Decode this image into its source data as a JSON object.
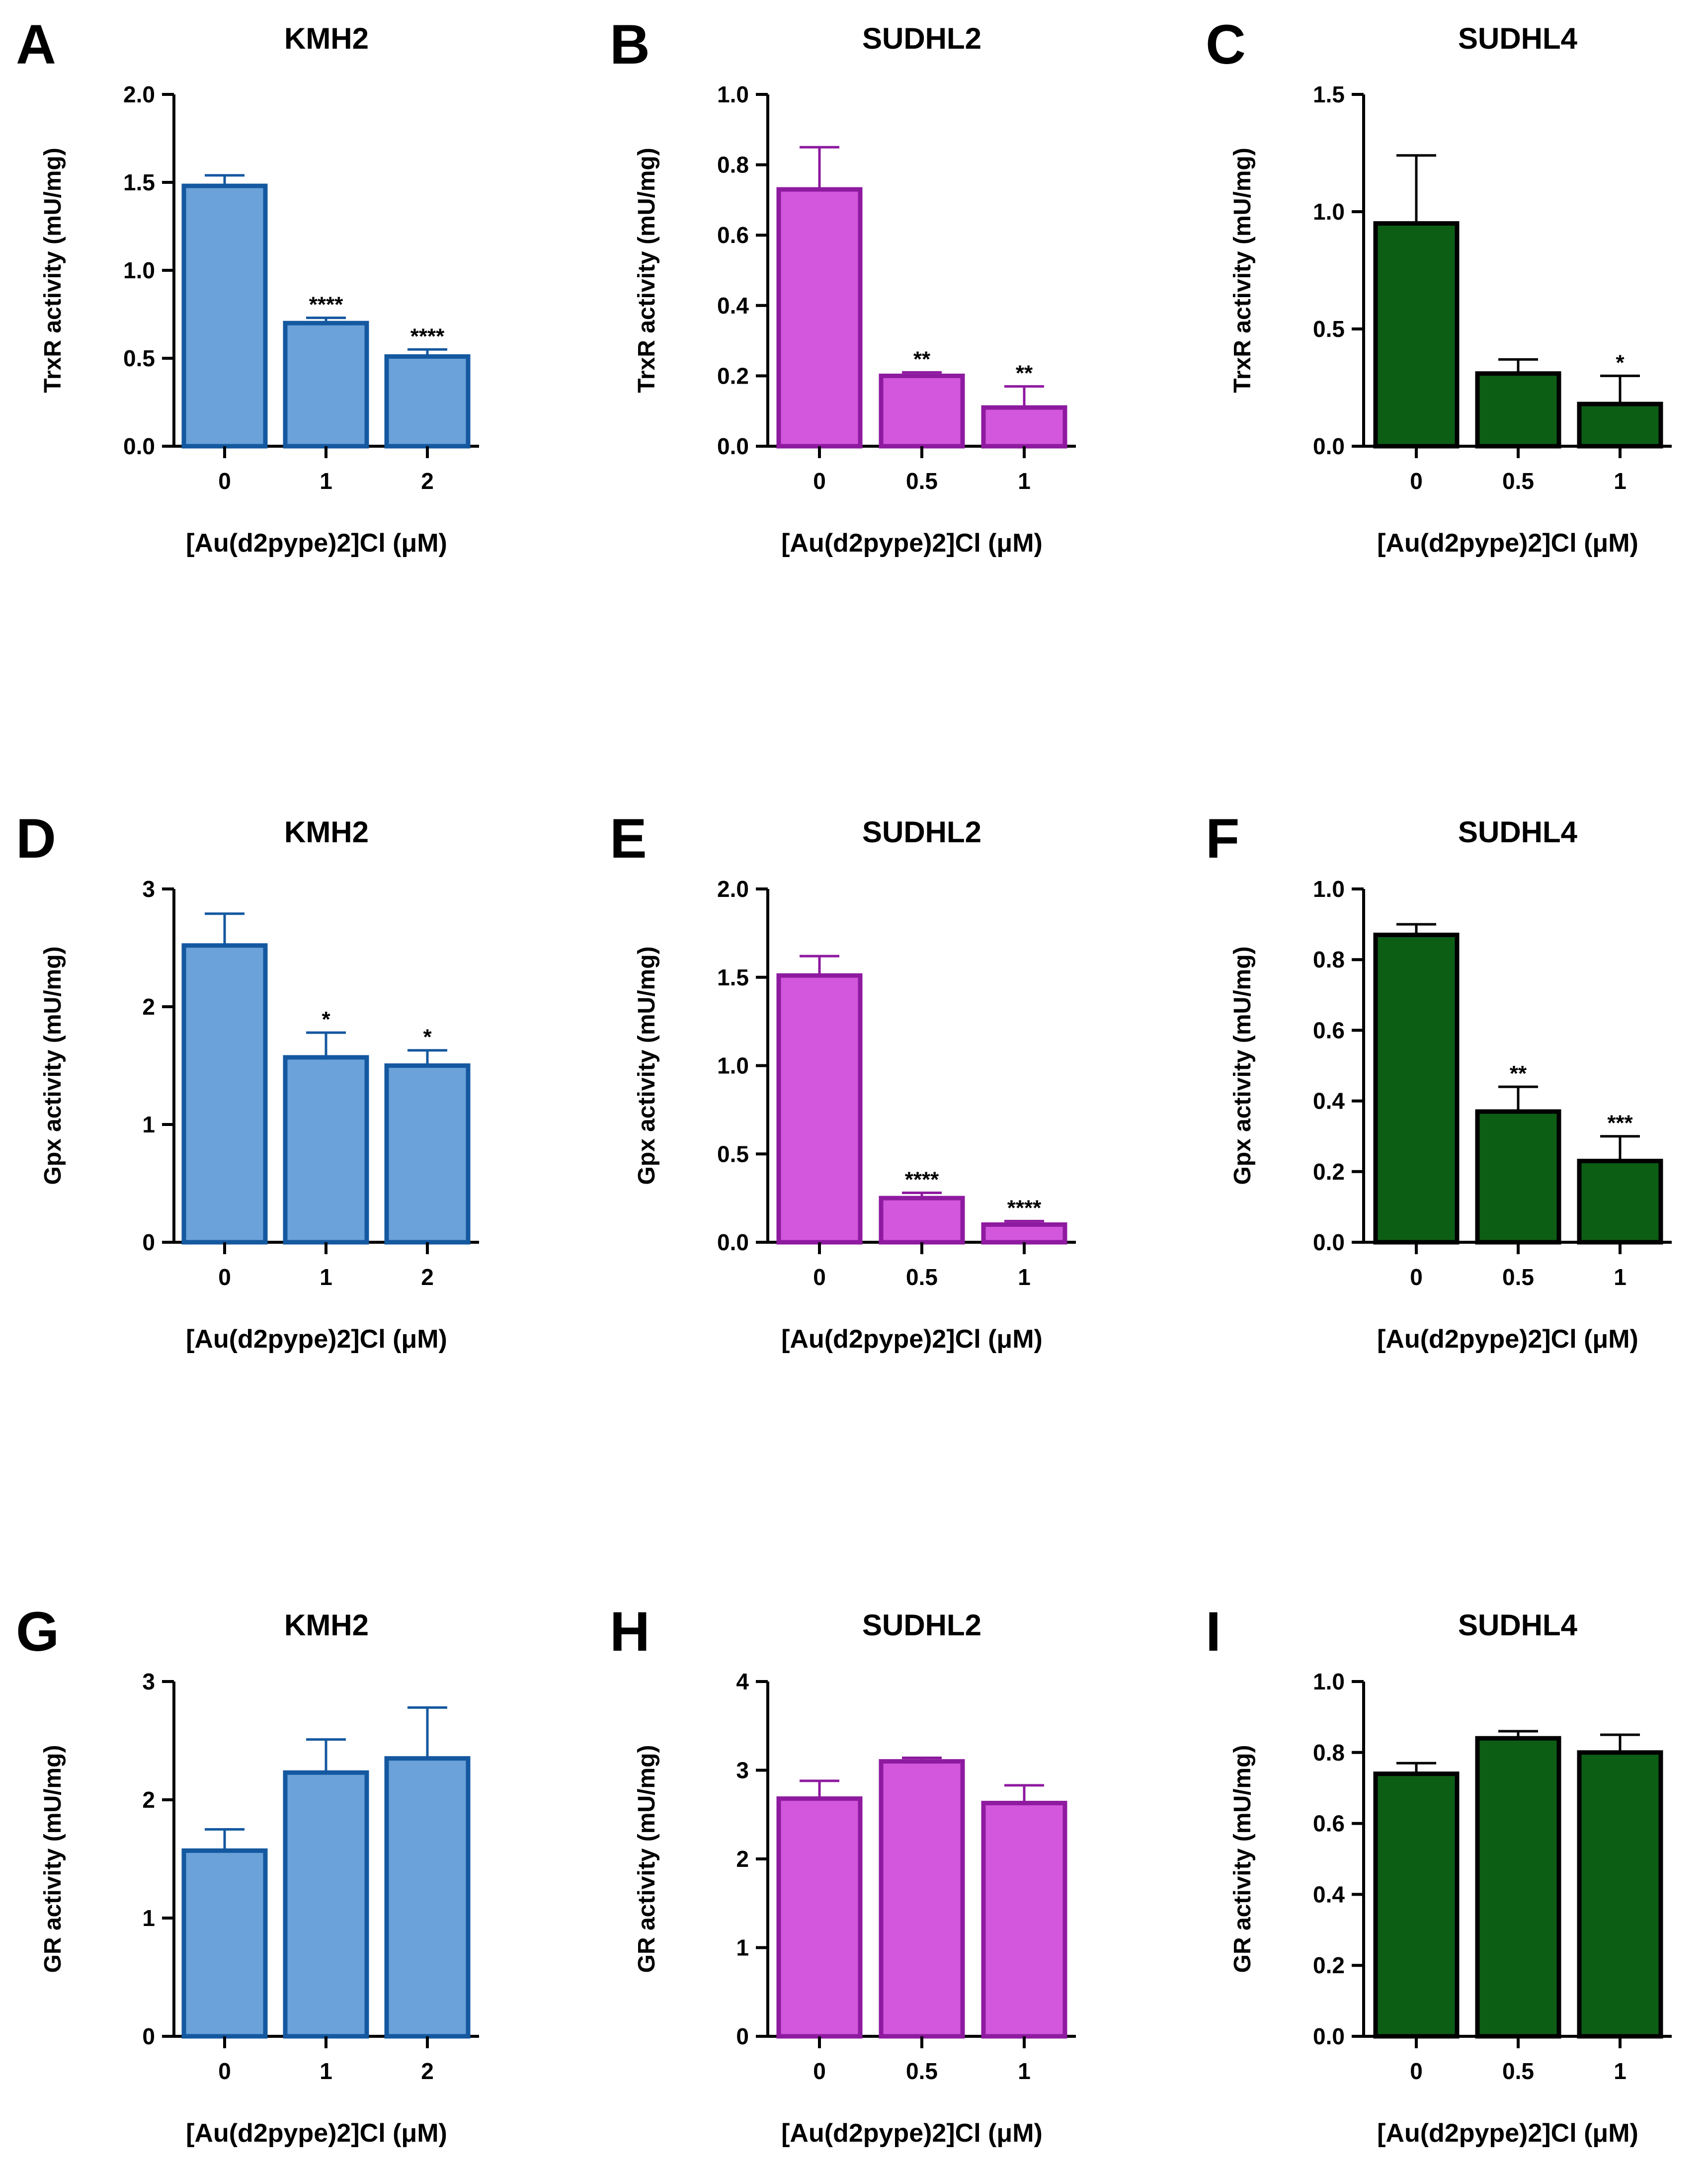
{
  "colors": {
    "KMH2": {
      "fill": "#6aa2d9",
      "stroke": "#1458a0"
    },
    "SUDHL2": {
      "fill": "#d257dc",
      "stroke": "#8e1aa0"
    },
    "SUDHL4": {
      "fill": "#0d5e15",
      "stroke": "#000000"
    }
  },
  "chart_data": [
    {
      "panel": "A",
      "type": "bar",
      "title": "KMH2",
      "ylabel": "TrxR activity (mU/mg)",
      "xlabel": "[Au(d2pype)2]Cl (μM)",
      "categories": [
        "0",
        "1",
        "2"
      ],
      "values": [
        1.48,
        0.7,
        0.51
      ],
      "errors": [
        0.06,
        0.03,
        0.04
      ],
      "significance": [
        "",
        "****",
        "****"
      ],
      "ylim": [
        0,
        2.0
      ],
      "yticks": [
        "0.0",
        "0.5",
        "1.0",
        "1.5",
        "2.0"
      ],
      "color": "KMH2"
    },
    {
      "panel": "B",
      "type": "bar",
      "title": "SUDHL2",
      "ylabel": "TrxR activity (mU/mg)",
      "xlabel": "[Au(d2pype)2]Cl (μM)",
      "categories": [
        "0",
        "0.5",
        "1"
      ],
      "values": [
        0.73,
        0.2,
        0.11
      ],
      "errors": [
        0.12,
        0.01,
        0.06
      ],
      "significance": [
        "",
        "**",
        "**"
      ],
      "ylim": [
        0,
        1.0
      ],
      "yticks": [
        "0.0",
        "0.2",
        "0.4",
        "0.6",
        "0.8",
        "1.0"
      ],
      "color": "SUDHL2"
    },
    {
      "panel": "C",
      "type": "bar",
      "title": "SUDHL4",
      "ylabel": "TrxR activity (mU/mg)",
      "xlabel": "[Au(d2pype)2]Cl (μM)",
      "categories": [
        "0",
        "0.5",
        "1"
      ],
      "values": [
        0.95,
        0.31,
        0.18
      ],
      "errors": [
        0.29,
        0.06,
        0.12
      ],
      "significance": [
        "",
        "",
        "*"
      ],
      "ylim": [
        0,
        1.5
      ],
      "yticks": [
        "0.0",
        "0.5",
        "1.0",
        "1.5"
      ],
      "color": "SUDHL4"
    },
    {
      "panel": "D",
      "type": "bar",
      "title": "KMH2",
      "ylabel": "Gpx activity (mU/mg)",
      "xlabel": "[Au(d2pype)2]Cl (μM)",
      "categories": [
        "0",
        "1",
        "2"
      ],
      "values": [
        2.52,
        1.57,
        1.5
      ],
      "errors": [
        0.27,
        0.21,
        0.13
      ],
      "significance": [
        "",
        "*",
        "*"
      ],
      "ylim": [
        0,
        3
      ],
      "yticks": [
        "0",
        "1",
        "2",
        "3"
      ],
      "color": "KMH2"
    },
    {
      "panel": "E",
      "type": "bar",
      "title": "SUDHL2",
      "ylabel": "Gpx activity (mU/mg)",
      "xlabel": "[Au(d2pype)2]Cl (μM)",
      "categories": [
        "0",
        "0.5",
        "1"
      ],
      "values": [
        1.51,
        0.25,
        0.1
      ],
      "errors": [
        0.11,
        0.03,
        0.02
      ],
      "significance": [
        "",
        "****",
        "****"
      ],
      "ylim": [
        0,
        2.0
      ],
      "yticks": [
        "0.0",
        "0.5",
        "1.0",
        "1.5",
        "2.0"
      ],
      "color": "SUDHL2"
    },
    {
      "panel": "F",
      "type": "bar",
      "title": "SUDHL4",
      "ylabel": "Gpx activity (mU/mg)",
      "xlabel": "[Au(d2pype)2]Cl (μM)",
      "categories": [
        "0",
        "0.5",
        "1"
      ],
      "values": [
        0.87,
        0.37,
        0.23
      ],
      "errors": [
        0.03,
        0.07,
        0.07
      ],
      "significance": [
        "",
        "**",
        "***"
      ],
      "ylim": [
        0,
        1.0
      ],
      "yticks": [
        "0.0",
        "0.2",
        "0.4",
        "0.6",
        "0.8",
        "1.0"
      ],
      "color": "SUDHL4"
    },
    {
      "panel": "G",
      "type": "bar",
      "title": "KMH2",
      "ylabel": "GR activity (mU/mg)",
      "xlabel": "[Au(d2pype)2]Cl (μM)",
      "categories": [
        "0",
        "1",
        "2"
      ],
      "values": [
        1.57,
        2.23,
        2.35
      ],
      "errors": [
        0.18,
        0.28,
        0.43
      ],
      "significance": [
        "",
        "",
        ""
      ],
      "ylim": [
        0,
        3
      ],
      "yticks": [
        "0",
        "1",
        "2",
        "3"
      ],
      "color": "KMH2"
    },
    {
      "panel": "H",
      "type": "bar",
      "title": "SUDHL2",
      "ylabel": "GR activity (mU/mg)",
      "xlabel": "[Au(d2pype)2]Cl (μM)",
      "categories": [
        "0",
        "0.5",
        "1"
      ],
      "values": [
        2.68,
        3.1,
        2.63
      ],
      "errors": [
        0.2,
        0.04,
        0.2
      ],
      "significance": [
        "",
        "",
        ""
      ],
      "ylim": [
        0,
        4
      ],
      "yticks": [
        "0",
        "1",
        "2",
        "3",
        "4"
      ],
      "color": "SUDHL2"
    },
    {
      "panel": "I",
      "type": "bar",
      "title": "SUDHL4",
      "ylabel": "GR activity (mU/mg)",
      "xlabel": "[Au(d2pype)2]Cl (μM)",
      "categories": [
        "0",
        "0.5",
        "1"
      ],
      "values": [
        0.74,
        0.84,
        0.8
      ],
      "errors": [
        0.03,
        0.02,
        0.05
      ],
      "significance": [
        "",
        "",
        ""
      ],
      "ylim": [
        0,
        1.0
      ],
      "yticks": [
        "0.0",
        "0.2",
        "0.4",
        "0.6",
        "0.8",
        "1.0"
      ],
      "color": "SUDHL4"
    }
  ]
}
